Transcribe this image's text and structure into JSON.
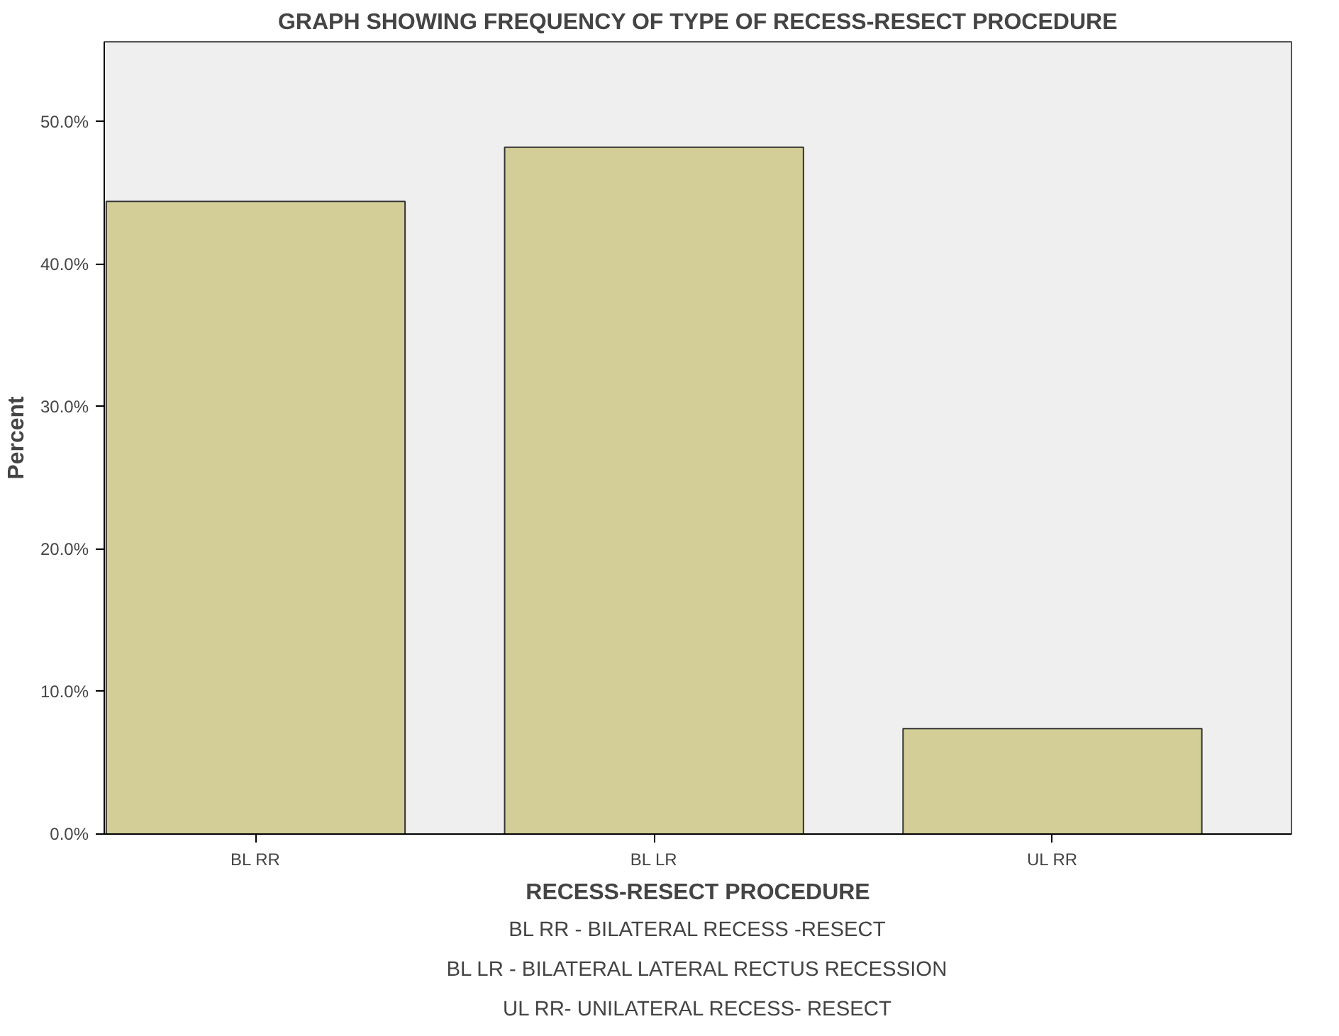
{
  "chart_data": {
    "type": "bar",
    "title": "GRAPH SHOWING FREQUENCY OF TYPE OF RECESS-RESECT PROCEDURE",
    "xlabel": "RECESS-RESECT PROCEDURE",
    "ylabel": "Percent",
    "categories": [
      "BL RR",
      "BL LR",
      "UL RR"
    ],
    "values": [
      44.4,
      48.2,
      7.4
    ],
    "color": "#d3ce97",
    "ylim": [
      0,
      55.6
    ],
    "yticks": [
      {
        "value": 0,
        "label": "0.0%"
      },
      {
        "value": 10,
        "label": "10.0%"
      },
      {
        "value": 20,
        "label": "20.0%"
      },
      {
        "value": 30,
        "label": "30.0%"
      },
      {
        "value": 40,
        "label": "40.0%"
      },
      {
        "value": 50,
        "label": "50.0%"
      }
    ],
    "grid": false,
    "annotations": [
      "BL RR - BILATERAL RECESS -RESECT",
      "BL LR - BILATERAL LATERAL RECTUS RECESSION",
      "UL RR- UNILATERAL RECESS- RESECT"
    ]
  }
}
